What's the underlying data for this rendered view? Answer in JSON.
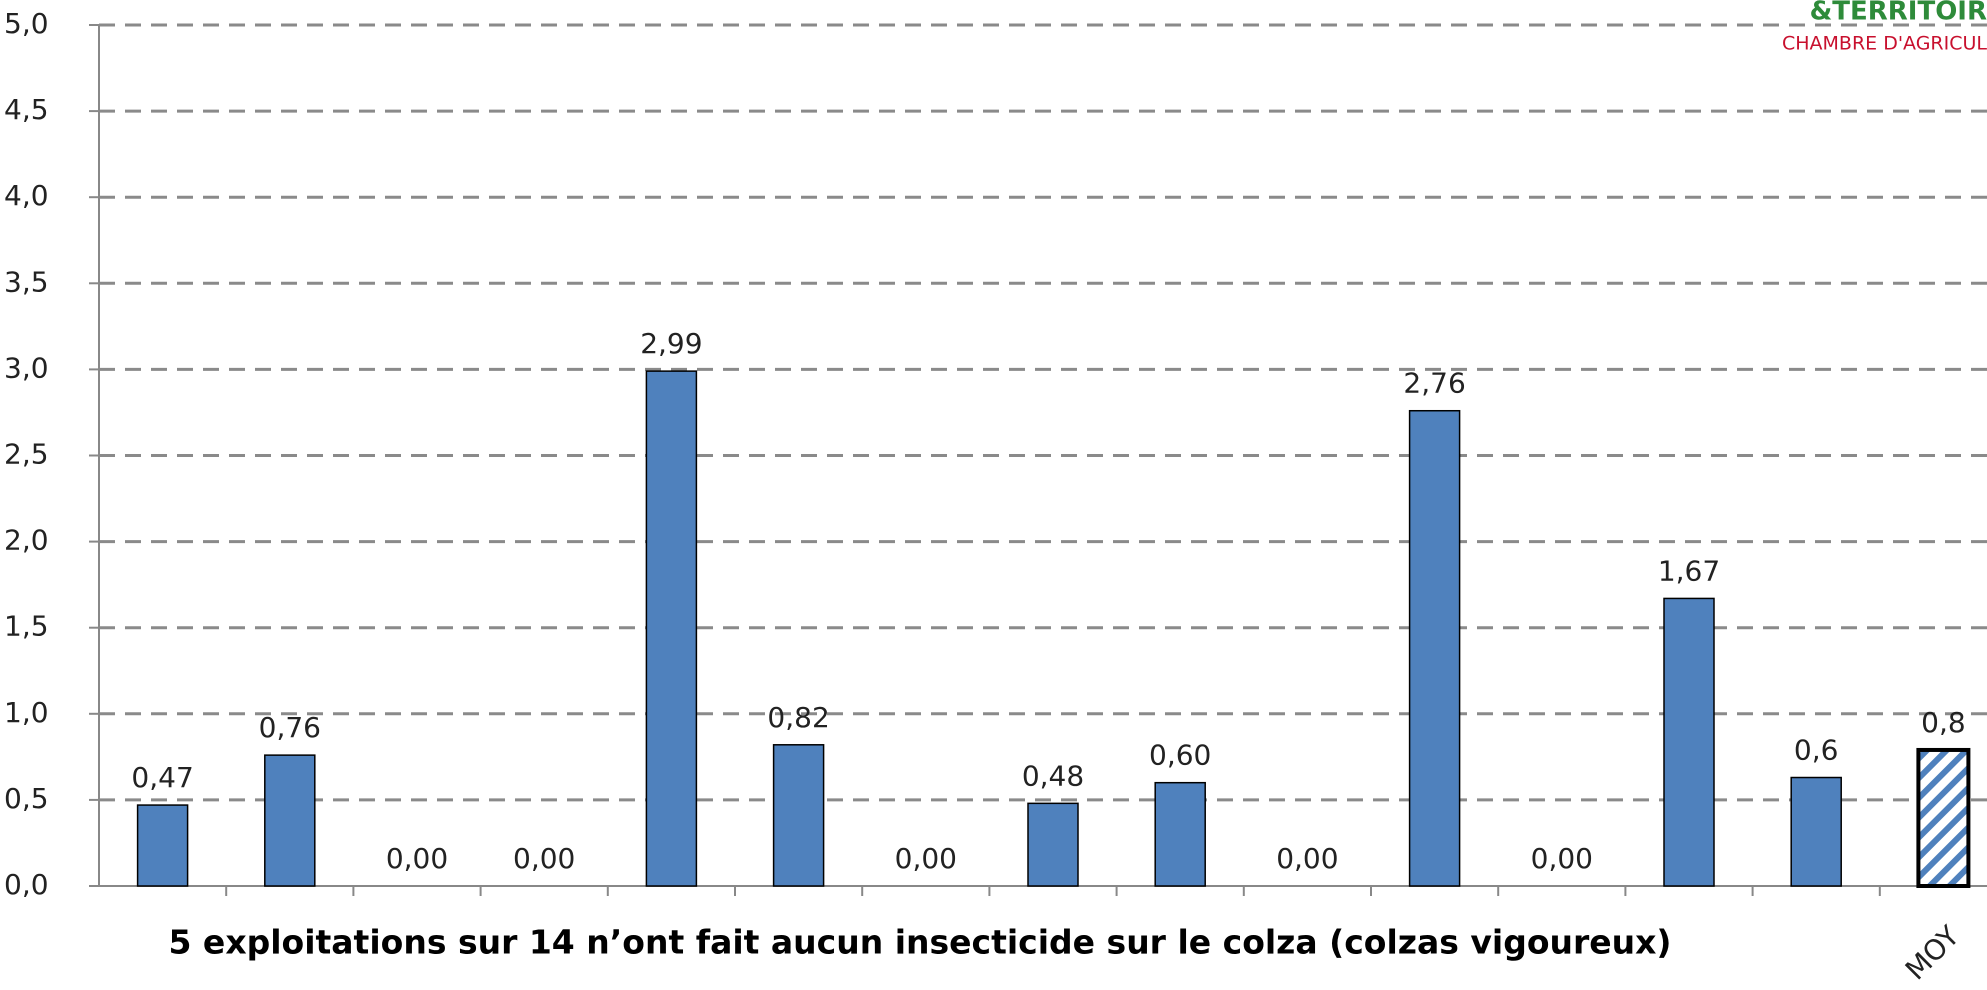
{
  "chart_data": {
    "type": "bar",
    "categories": [
      null,
      null,
      null,
      null,
      null,
      null,
      null,
      null,
      null,
      null,
      null,
      null,
      null,
      null,
      "MOY"
    ],
    "values": [
      0.47,
      0.76,
      0,
      0,
      2.99,
      0.82,
      0,
      0.48,
      0.6,
      0,
      2.76,
      0,
      1.67,
      0.63,
      0.79
    ],
    "value_labels": [
      "0,47",
      "0,76",
      "0,00",
      "0,00",
      "2,99",
      "0,82",
      "0,00",
      "0,48",
      "0,60",
      "0,00",
      "2,76",
      "0,00",
      "1,67",
      "0,6",
      "0,8"
    ],
    "color": "#4f81bd",
    "bar_styles": [
      "solid",
      "solid",
      "solid",
      "solid",
      "solid",
      "solid",
      "solid",
      "solid",
      "solid",
      "solid",
      "solid",
      "solid",
      "solid",
      "solid",
      "hatched"
    ],
    "ylim": [
      0,
      5
    ],
    "yticks": [
      {
        "value": 0,
        "label": "0,0"
      },
      {
        "value": 0.5,
        "label": "0,5"
      },
      {
        "value": 1,
        "label": "1,0"
      },
      {
        "value": 1.5,
        "label": "1,5"
      },
      {
        "value": 2,
        "label": "2,0"
      },
      {
        "value": 2.5,
        "label": "2,5"
      },
      {
        "value": 3,
        "label": "3,0"
      },
      {
        "value": 3.5,
        "label": "3,5"
      },
      {
        "value": 4,
        "label": "4,0"
      },
      {
        "value": 4.5,
        "label": "4,5"
      },
      {
        "value": 5,
        "label": "5,0"
      }
    ],
    "grid": true,
    "annotations": [
      "5 exploitations sur 14 n’ont fait aucun insecticide sur le colza (colzas vigoureux)"
    ],
    "logo": [
      "&TERRITOIR",
      "CHAMBRE D'AGRICUL"
    ]
  }
}
